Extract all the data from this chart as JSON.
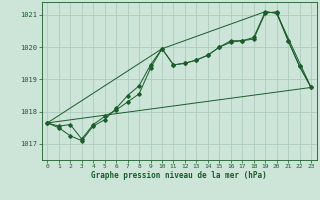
{
  "title": "Graphe pression niveau de la mer (hPa)",
  "background_color": "#cce5d8",
  "grid_color": "#a8c8b8",
  "line_color": "#1a5c2a",
  "xlim": [
    -0.5,
    23.5
  ],
  "ylim": [
    1016.5,
    1021.4
  ],
  "yticks": [
    1017,
    1018,
    1019,
    1020,
    1021
  ],
  "xticks": [
    0,
    1,
    2,
    3,
    4,
    5,
    6,
    7,
    8,
    9,
    10,
    11,
    12,
    13,
    14,
    15,
    16,
    17,
    18,
    19,
    20,
    21,
    22,
    23
  ],
  "series": [
    {
      "x": [
        0,
        1,
        2,
        3,
        4,
        5,
        6,
        7,
        8,
        9,
        10,
        11,
        12,
        13,
        14,
        15,
        16,
        17,
        18,
        19,
        20,
        21,
        22,
        23
      ],
      "y": [
        1017.65,
        1017.55,
        1017.6,
        1017.15,
        1017.6,
        1017.85,
        1018.05,
        1018.3,
        1018.55,
        1019.35,
        1019.95,
        1019.45,
        1019.5,
        1019.6,
        1019.75,
        1020.0,
        1020.15,
        1020.2,
        1020.25,
        1021.05,
        1021.1,
        1020.2,
        1019.4,
        1018.75
      ],
      "marker": true
    },
    {
      "x": [
        0,
        1,
        2,
        3,
        4,
        5,
        6,
        7,
        8,
        9,
        10,
        11,
        12,
        13,
        14,
        15,
        16,
        17,
        18,
        19,
        20,
        21,
        22,
        23
      ],
      "y": [
        1017.65,
        1017.5,
        1017.25,
        1017.1,
        1017.55,
        1017.75,
        1018.1,
        1018.5,
        1018.8,
        1019.45,
        1019.95,
        1019.45,
        1019.5,
        1019.6,
        1019.75,
        1020.0,
        1020.2,
        1020.2,
        1020.3,
        1021.1,
        1021.05,
        1020.2,
        1019.4,
        1018.75
      ],
      "marker": true
    },
    {
      "x": [
        0,
        23
      ],
      "y": [
        1017.65,
        1018.75
      ],
      "marker": false
    },
    {
      "x": [
        0,
        10,
        19,
        20,
        23
      ],
      "y": [
        1017.65,
        1019.95,
        1021.1,
        1021.05,
        1018.75
      ],
      "marker": false
    }
  ]
}
